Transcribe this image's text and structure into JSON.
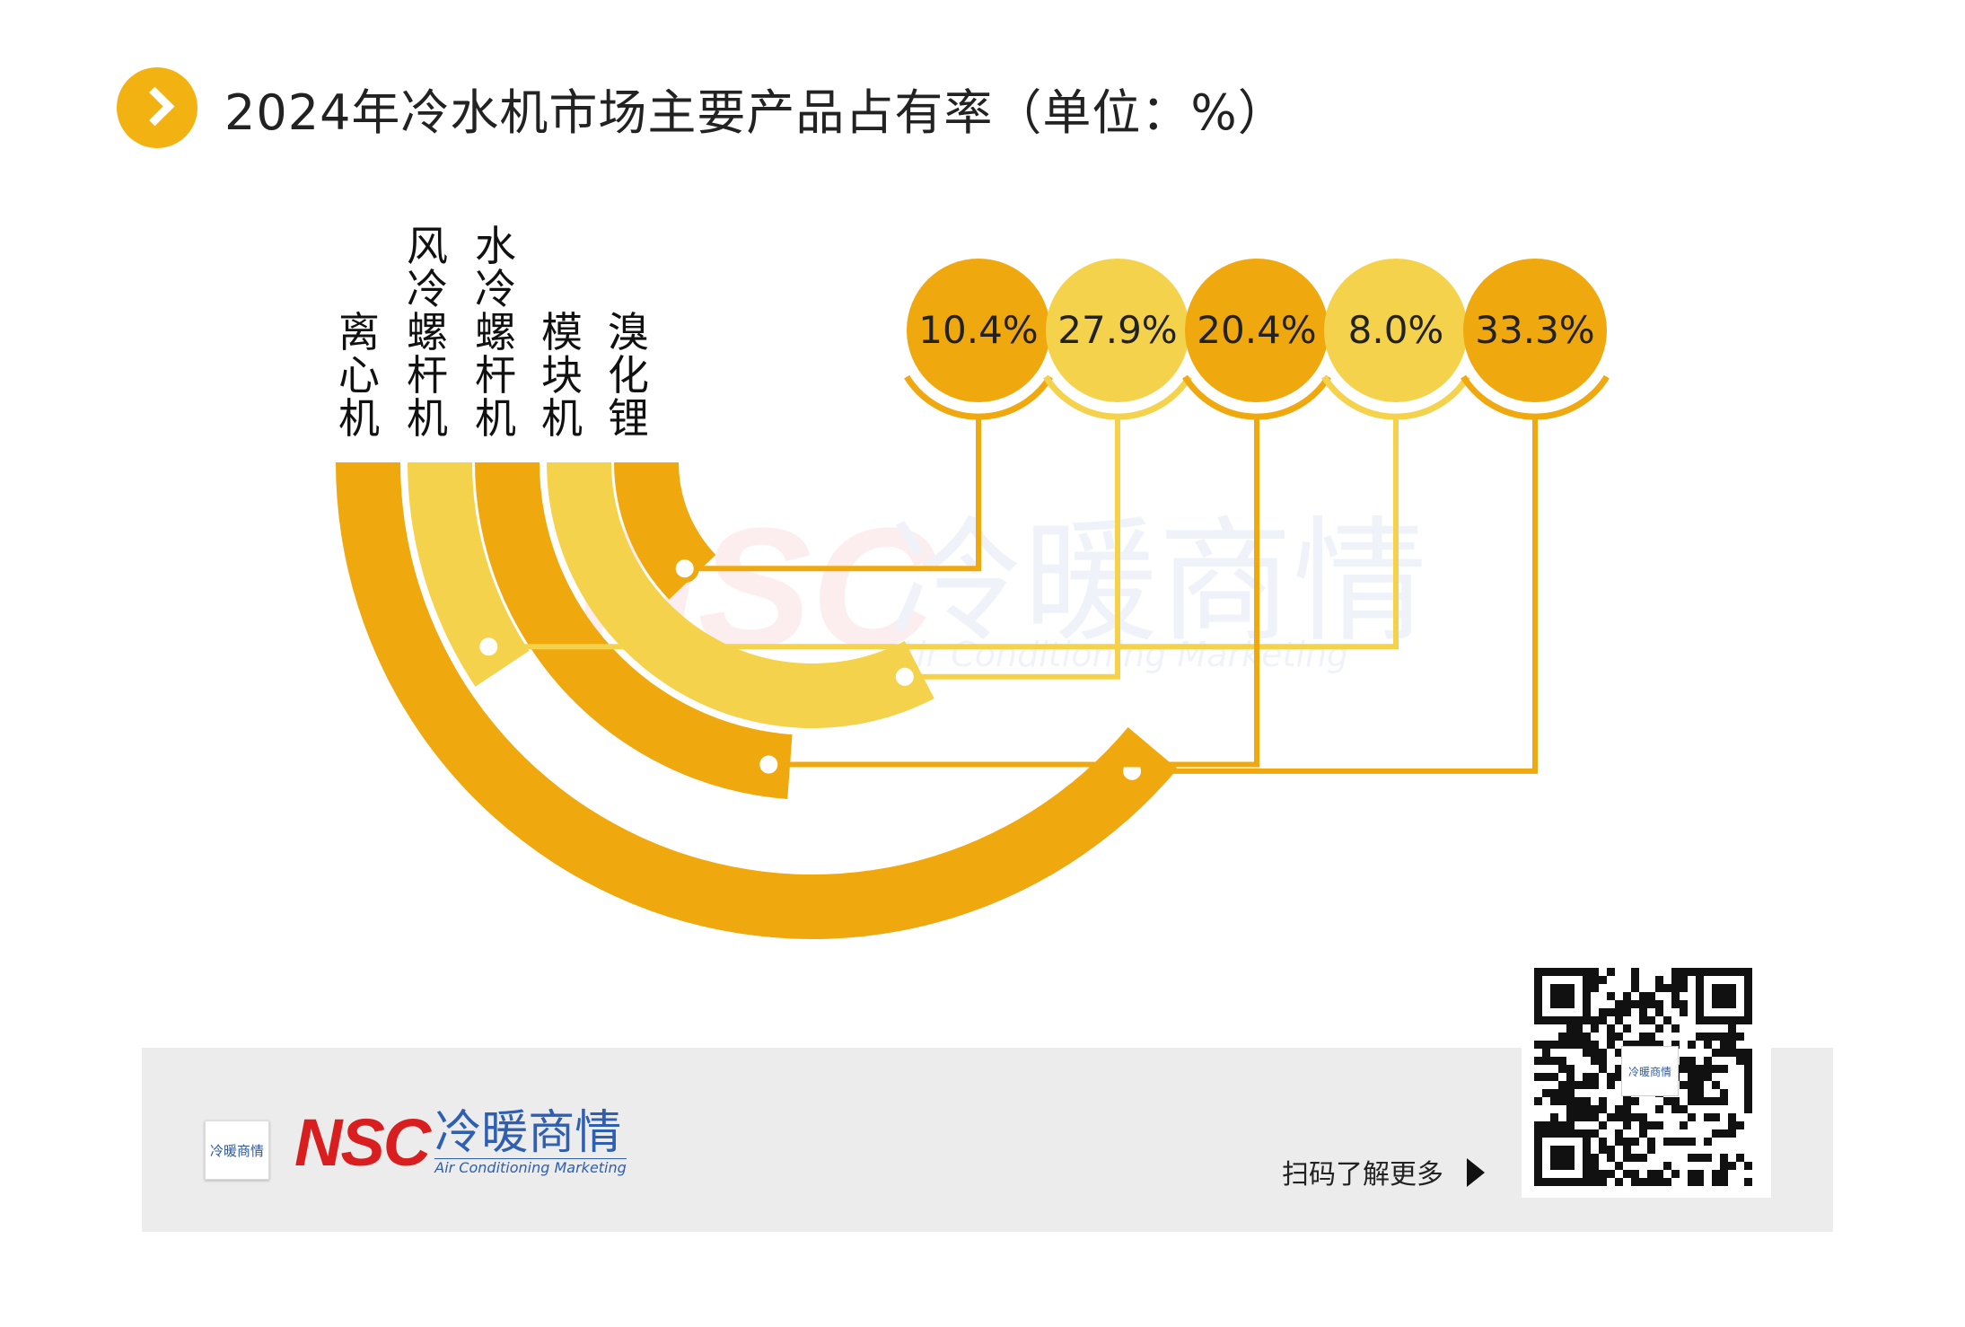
{
  "header": {
    "title": "2024年冷水机市场主要产品占有率（单位：%）",
    "icon": "chevron-right-icon",
    "accent_color": "#f2b211"
  },
  "chart_data": {
    "type": "radial-bar",
    "title": "2024年冷水机市场主要产品占有率（单位：%）",
    "unit": "%",
    "categories": [
      "离心机",
      "风冷螺杆机",
      "水冷螺杆机",
      "模块机",
      "溴化锂"
    ],
    "series": [
      {
        "values": [
          33.3,
          8.0,
          20.4,
          27.9,
          10.4
        ]
      }
    ],
    "value_labels": [
      "33.3%",
      "8.0%",
      "20.4%",
      "27.9%",
      "10.4%"
    ],
    "bubble_order": [
      4,
      3,
      2,
      1,
      0
    ],
    "colors": [
      "#f0a80f",
      "#f5d24b",
      "#f0a80f",
      "#f5d24b",
      "#f0a80f"
    ],
    "legend": "none",
    "grid": false
  },
  "watermark": {
    "abbr": "NSC",
    "name": "冷暖商情",
    "english": "Air Conditioning Marketing"
  },
  "footer": {
    "logo_box_text": "冷暖商情",
    "brand_abbr": "NSC",
    "brand_name": "冷暖商情",
    "brand_english": "Air Conditioning Marketing",
    "scan_text": "扫码了解更多",
    "qr_center_text": "冷暖商情",
    "qr_icon": "qr-code-icon",
    "arrow_icon": "triangle-right-icon",
    "band_color": "#ececec"
  }
}
